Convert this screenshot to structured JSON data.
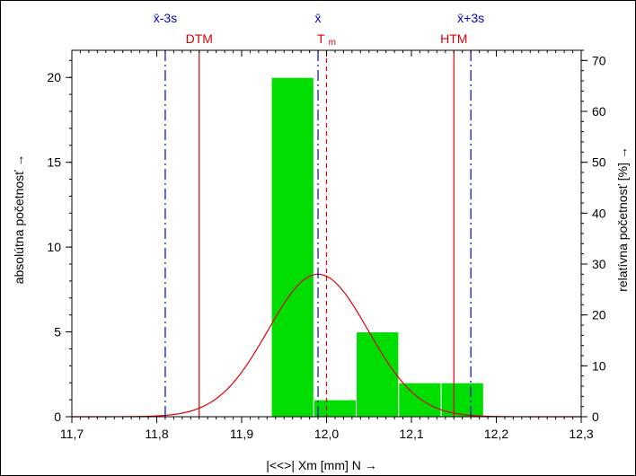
{
  "chart_data": {
    "type": "bar",
    "xlabel": "|<<>|  Xm [mm]  N →",
    "ylabel": "absolútna početnosť →",
    "y2label": "relatívna početnosť  [%] →",
    "xlim": [
      11.7,
      12.3
    ],
    "ylim": [
      0,
      21.6
    ],
    "y2lim": [
      0,
      72
    ],
    "grid": false,
    "x_ticks": [
      11.7,
      11.8,
      11.9,
      12.0,
      12.1,
      12.2,
      12.3
    ],
    "x_tick_labels": [
      "11,7",
      "11,8",
      "11,9",
      "12,0",
      "12,1",
      "12,2",
      "12,3"
    ],
    "y_ticks": [
      0,
      5,
      10,
      15,
      20
    ],
    "y_tick_labels": [
      "0",
      "5",
      "10",
      "15",
      "20"
    ],
    "y2_ticks": [
      0,
      10,
      20,
      30,
      40,
      50,
      60,
      70
    ],
    "y2_tick_labels": [
      "0",
      "10",
      "20",
      "30",
      "40",
      "50",
      "60",
      "70"
    ],
    "bins": [
      {
        "x0": 11.935,
        "x1": 11.985,
        "count": 20
      },
      {
        "x0": 11.985,
        "x1": 12.035,
        "count": 1
      },
      {
        "x0": 12.035,
        "x1": 12.085,
        "count": 5
      },
      {
        "x0": 12.085,
        "x1": 12.135,
        "count": 2
      },
      {
        "x0": 12.135,
        "x1": 12.185,
        "count": 2
      }
    ],
    "bar_color": "#00dd00",
    "normal_curve": {
      "mean": 11.99,
      "sd": 0.059,
      "peak": 8.4,
      "color": "#dd0000"
    },
    "reference_lines": [
      {
        "value": 11.81,
        "label": "x̄-3s",
        "style": "dashdot",
        "color": "#0000dd",
        "row": "top"
      },
      {
        "value": 11.99,
        "label": "x̄",
        "style": "dashdot",
        "color": "#0000dd",
        "row": "top"
      },
      {
        "value": 12.17,
        "label": "x̄+3s",
        "style": "dashdot",
        "color": "#0000dd",
        "row": "top"
      },
      {
        "value": 11.85,
        "label": "DTM",
        "style": "solid",
        "color": "#dd0000",
        "row": "bottom"
      },
      {
        "value": 12.0,
        "label": "T",
        "subscript": "m",
        "style": "dashed",
        "color": "#dd0000",
        "row": "bottom"
      },
      {
        "value": 12.15,
        "label": "HTM",
        "style": "solid",
        "color": "#dd0000",
        "row": "bottom"
      }
    ]
  }
}
